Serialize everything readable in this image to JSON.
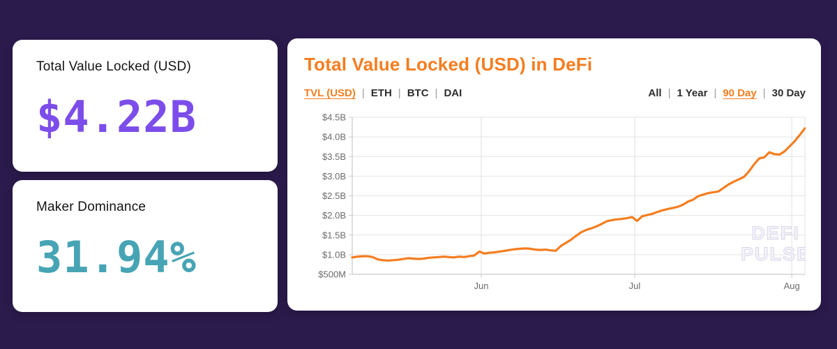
{
  "page": {
    "background": "#2b1b4d"
  },
  "metrics": [
    {
      "label": "Total Value Locked (USD)",
      "value": "$4.22B",
      "color": "#7c4dea"
    },
    {
      "label": "Maker Dominance",
      "value": "31.94%",
      "color": "#47a4b4"
    }
  ],
  "chart_card": {
    "title": "Total Value Locked (USD) in DeFi",
    "title_color": "#f47d20",
    "series_tabs": [
      {
        "label": "TVL (USD)",
        "active": true
      },
      {
        "label": "ETH",
        "active": false
      },
      {
        "label": "BTC",
        "active": false
      },
      {
        "label": "DAI",
        "active": false
      }
    ],
    "range_tabs": [
      {
        "label": "All",
        "active": false
      },
      {
        "label": "1 Year",
        "active": false
      },
      {
        "label": "90 Day",
        "active": true
      },
      {
        "label": "30 Day",
        "active": false
      }
    ],
    "watermark_lines": [
      "DEFI",
      "PULSE"
    ]
  },
  "chart_data": {
    "type": "line",
    "title": "Total Value Locked (USD) in DeFi",
    "series_name": "TVL (USD)",
    "range": "90 Day",
    "line_color": "#f47d20",
    "grid": true,
    "ylim": [
      0.5,
      4.5
    ],
    "y_ticks": [
      {
        "label": "$4.5B",
        "value": 4.5
      },
      {
        "label": "$4.0B",
        "value": 4.0
      },
      {
        "label": "$3.5B",
        "value": 3.5
      },
      {
        "label": "$3.0B",
        "value": 3.0
      },
      {
        "label": "$2.5B",
        "value": 2.5
      },
      {
        "label": "$2.0B",
        "value": 2.0
      },
      {
        "label": "$1.5B",
        "value": 1.5
      },
      {
        "label": "$1.0B",
        "value": 1.0
      },
      {
        "label": "$500M",
        "value": 0.5
      }
    ],
    "x_ticks": [
      {
        "label": "Jun",
        "pos": 0.285
      },
      {
        "label": "Jul",
        "pos": 0.624
      },
      {
        "label": "Aug",
        "pos": 0.971
      }
    ],
    "values_usd_billions": [
      0.93,
      0.95,
      0.96,
      0.96,
      0.94,
      0.88,
      0.86,
      0.85,
      0.86,
      0.87,
      0.89,
      0.91,
      0.9,
      0.89,
      0.9,
      0.92,
      0.93,
      0.94,
      0.95,
      0.94,
      0.93,
      0.95,
      0.94,
      0.96,
      0.98,
      1.08,
      1.03,
      1.05,
      1.06,
      1.08,
      1.1,
      1.12,
      1.14,
      1.15,
      1.16,
      1.15,
      1.13,
      1.12,
      1.13,
      1.11,
      1.1,
      1.22,
      1.3,
      1.38,
      1.48,
      1.57,
      1.63,
      1.67,
      1.72,
      1.78,
      1.85,
      1.88,
      1.9,
      1.91,
      1.93,
      1.96,
      1.86,
      1.98,
      2.01,
      2.04,
      2.09,
      2.13,
      2.16,
      2.19,
      2.22,
      2.27,
      2.35,
      2.4,
      2.49,
      2.53,
      2.57,
      2.59,
      2.61,
      2.7,
      2.79,
      2.86,
      2.92,
      2.98,
      3.12,
      3.3,
      3.45,
      3.48,
      3.61,
      3.56,
      3.55,
      3.63,
      3.76,
      3.89,
      4.05,
      4.22
    ]
  }
}
